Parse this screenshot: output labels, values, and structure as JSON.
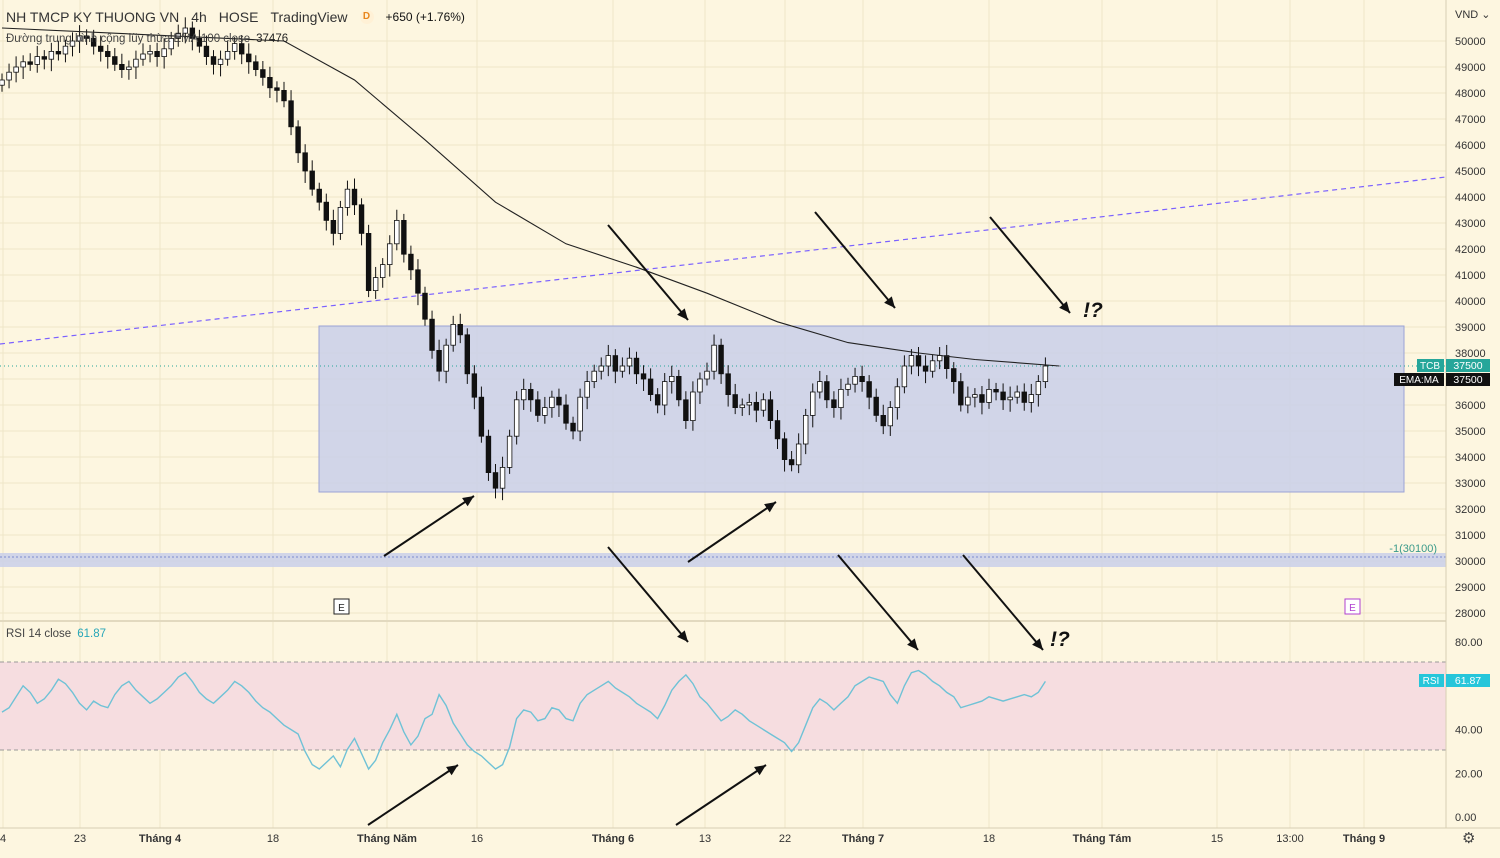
{
  "header": {
    "symbol_name": "NH TMCP KY THUONG VN",
    "interval": "4h",
    "exchange": "HOSE",
    "platform": "TradingView",
    "d_badge": "D",
    "change": "+650 (+1.76%)",
    "ema_label": "Đường trung bình cộng lũy thừa EMA 100 close",
    "ema_value": "37476",
    "rsi_label": "RSI 14 close",
    "rsi_value": "61.87"
  },
  "currency_unit": "VND",
  "price_axis": {
    "labels": [
      "50000",
      "49000",
      "48000",
      "47000",
      "46000",
      "45000",
      "44000",
      "43000",
      "42000",
      "41000",
      "40000",
      "39000",
      "38000",
      "37000",
      "36000",
      "35000",
      "34000",
      "33000",
      "32000",
      "31000",
      "30000",
      "29000",
      "28000"
    ],
    "tags": [
      {
        "name": "TCB",
        "value": "37500",
        "color": "#26a69a"
      },
      {
        "name": "EMA:MA",
        "value": "37500",
        "color": "#111111"
      }
    ],
    "fib_label": "-1(30100)"
  },
  "rsi_axis": {
    "labels": [
      "80.00",
      "40.00",
      "20.00",
      "0.00"
    ],
    "tag": {
      "name": "RSI",
      "value": "61.87",
      "color": "#26c6da"
    }
  },
  "time_axis": [
    "4",
    "23",
    "Tháng 4",
    "18",
    "Tháng Năm",
    "16",
    "Tháng 6",
    "13",
    "22",
    "Tháng 7",
    "18",
    "Tháng Tám",
    "15",
    "13:00",
    "Tháng 9"
  ],
  "markers": {
    "earnings_1": "E",
    "earnings_2": "E"
  },
  "annotations": {
    "price_question": "!?",
    "rsi_question": "!?"
  },
  "colors": {
    "background": "#fdf6e0",
    "range_box": "#c9cfe9",
    "rsi_band": "#f6dde0",
    "trendline": "#7b61ff",
    "ema": "#222222",
    "rsi_line": "#6fc2d6"
  },
  "chart_data": [
    {
      "type": "candlestick",
      "title": "",
      "ylim": [
        27500,
        51500
      ],
      "close": [
        48500,
        48800,
        49000,
        49200,
        49100,
        49400,
        49300,
        49600,
        49500,
        49800,
        50000,
        50200,
        50100,
        49800,
        49600,
        49400,
        49100,
        48900,
        49000,
        49300,
        49500,
        49600,
        49400,
        49700,
        50100,
        50300,
        50500,
        50100,
        49800,
        49400,
        49100,
        49300,
        49600,
        49900,
        49500,
        49200,
        48900,
        48600,
        48200,
        48100,
        47700,
        46700,
        45700,
        45000,
        44300,
        43800,
        43100,
        42600,
        43600,
        44300,
        43700,
        42600,
        40400,
        40900,
        41400,
        42200,
        43100,
        41800,
        41200,
        40300,
        39300,
        38100,
        37300,
        38300,
        39100,
        38700,
        37200,
        36300,
        34800,
        33400,
        32800,
        33600,
        34800,
        36200,
        36600,
        36200,
        35600,
        35900,
        36300,
        36000,
        35300,
        35000,
        36300,
        36900,
        37300,
        37500,
        37900,
        37300,
        37500,
        37800,
        37200,
        37000,
        36400,
        36000,
        36900,
        37100,
        36200,
        35400,
        36500,
        37000,
        37300,
        38300,
        37200,
        36400,
        35900,
        36000,
        36100,
        35800,
        36200,
        35400,
        34700,
        33900,
        33700,
        34500,
        35600,
        36500,
        36900,
        36200,
        35900,
        36600,
        36800,
        37100,
        36900,
        36300,
        35600,
        35200,
        35900,
        36700,
        37500,
        37900,
        37500,
        37300,
        37700,
        37900,
        37400,
        36900,
        36000,
        36300,
        36400,
        36100,
        36600,
        36500,
        36200,
        36300,
        36500,
        36100,
        36400,
        36900,
        37500
      ]
    },
    {
      "type": "line",
      "name": "EMA 100",
      "points": [
        [
          0,
          50500
        ],
        [
          40,
          50000
        ],
        [
          50,
          48500
        ],
        [
          60,
          46200
        ],
        [
          70,
          43800
        ],
        [
          80,
          42200
        ],
        [
          90,
          41300
        ],
        [
          100,
          40300
        ],
        [
          110,
          39200
        ],
        [
          120,
          38400
        ],
        [
          130,
          38000
        ],
        [
          138,
          37750
        ],
        [
          150,
          37500
        ]
      ]
    },
    {
      "type": "line",
      "name": "RSI",
      "ylim": [
        0,
        80
      ],
      "values": [
        48,
        50,
        55,
        60,
        57,
        52,
        54,
        58,
        63,
        61,
        57,
        52,
        49,
        53,
        51,
        50,
        56,
        60,
        62,
        58,
        55,
        52,
        54,
        57,
        60,
        64,
        66,
        62,
        57,
        54,
        52,
        55,
        58,
        62,
        60,
        57,
        53,
        50,
        48,
        45,
        42,
        40,
        38,
        30,
        24,
        22,
        25,
        28,
        23,
        31,
        36,
        29,
        22,
        26,
        34,
        40,
        47,
        39,
        33,
        37,
        45,
        47,
        56,
        51,
        43,
        38,
        33,
        30,
        28,
        25,
        22,
        24,
        32,
        45,
        49,
        48,
        44,
        45,
        50,
        49,
        45,
        44,
        52,
        56,
        58,
        60,
        62,
        59,
        57,
        55,
        52,
        50,
        48,
        45,
        51,
        58,
        62,
        65,
        61,
        55,
        52,
        48,
        44,
        46,
        49,
        47,
        44,
        42,
        40,
        38,
        36,
        34,
        30,
        34,
        42,
        50,
        54,
        52,
        49,
        52,
        55,
        60,
        62,
        64,
        63,
        62,
        56,
        52,
        60,
        66,
        67,
        65,
        62,
        60,
        57,
        55,
        50,
        51,
        52,
        53,
        55,
        54,
        53,
        54,
        55,
        56,
        55,
        57,
        62
      ]
    }
  ]
}
